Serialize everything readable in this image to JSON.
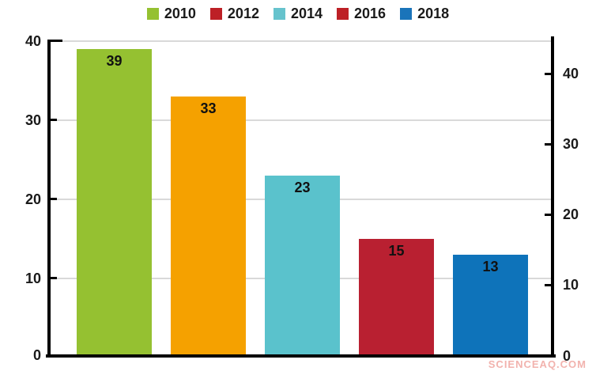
{
  "legend": {
    "items": [
      {
        "label": "2010",
        "color": "#95c131"
      },
      {
        "label": "2012",
        "color": "#bd2026"
      },
      {
        "label": "2014",
        "color": "#66c3cd"
      },
      {
        "label": "2016",
        "color": "#bd2026"
      },
      {
        "label": "2018",
        "color": "#1a74ba"
      }
    ]
  },
  "chart_data": {
    "type": "bar",
    "categories": [
      "2010",
      "2012",
      "2014",
      "2016",
      "2018"
    ],
    "values": [
      39,
      33,
      23,
      15,
      13
    ],
    "bar_colors": [
      "#95c131",
      "#f5a100",
      "#5ac2cc",
      "#b92031",
      "#0e73ba"
    ],
    "data_labels": [
      "39",
      "33",
      "23",
      "15",
      "13"
    ],
    "title": "",
    "xlabel": "",
    "ylabel": "",
    "left_axis": {
      "ticks": [
        "0",
        "10",
        "20",
        "30",
        "40"
      ],
      "range": [
        0,
        40
      ]
    },
    "right_axis": {
      "ticks": [
        "0",
        "10",
        "20",
        "30",
        "40"
      ],
      "range": [
        0,
        45
      ]
    },
    "grid": true,
    "legend_position": "top"
  },
  "axes": {
    "left_ticks_desc": [
      "40",
      "30",
      "20",
      "10",
      "0"
    ],
    "right_ticks_desc": [
      "40",
      "30",
      "20",
      "10",
      "0"
    ]
  },
  "watermark": "SCIENCEAQ.COM",
  "colors": {
    "axis": "#000000",
    "gridline": "#d9d9d9",
    "watermark": "#f2b3ae",
    "background": "#ffffff"
  }
}
